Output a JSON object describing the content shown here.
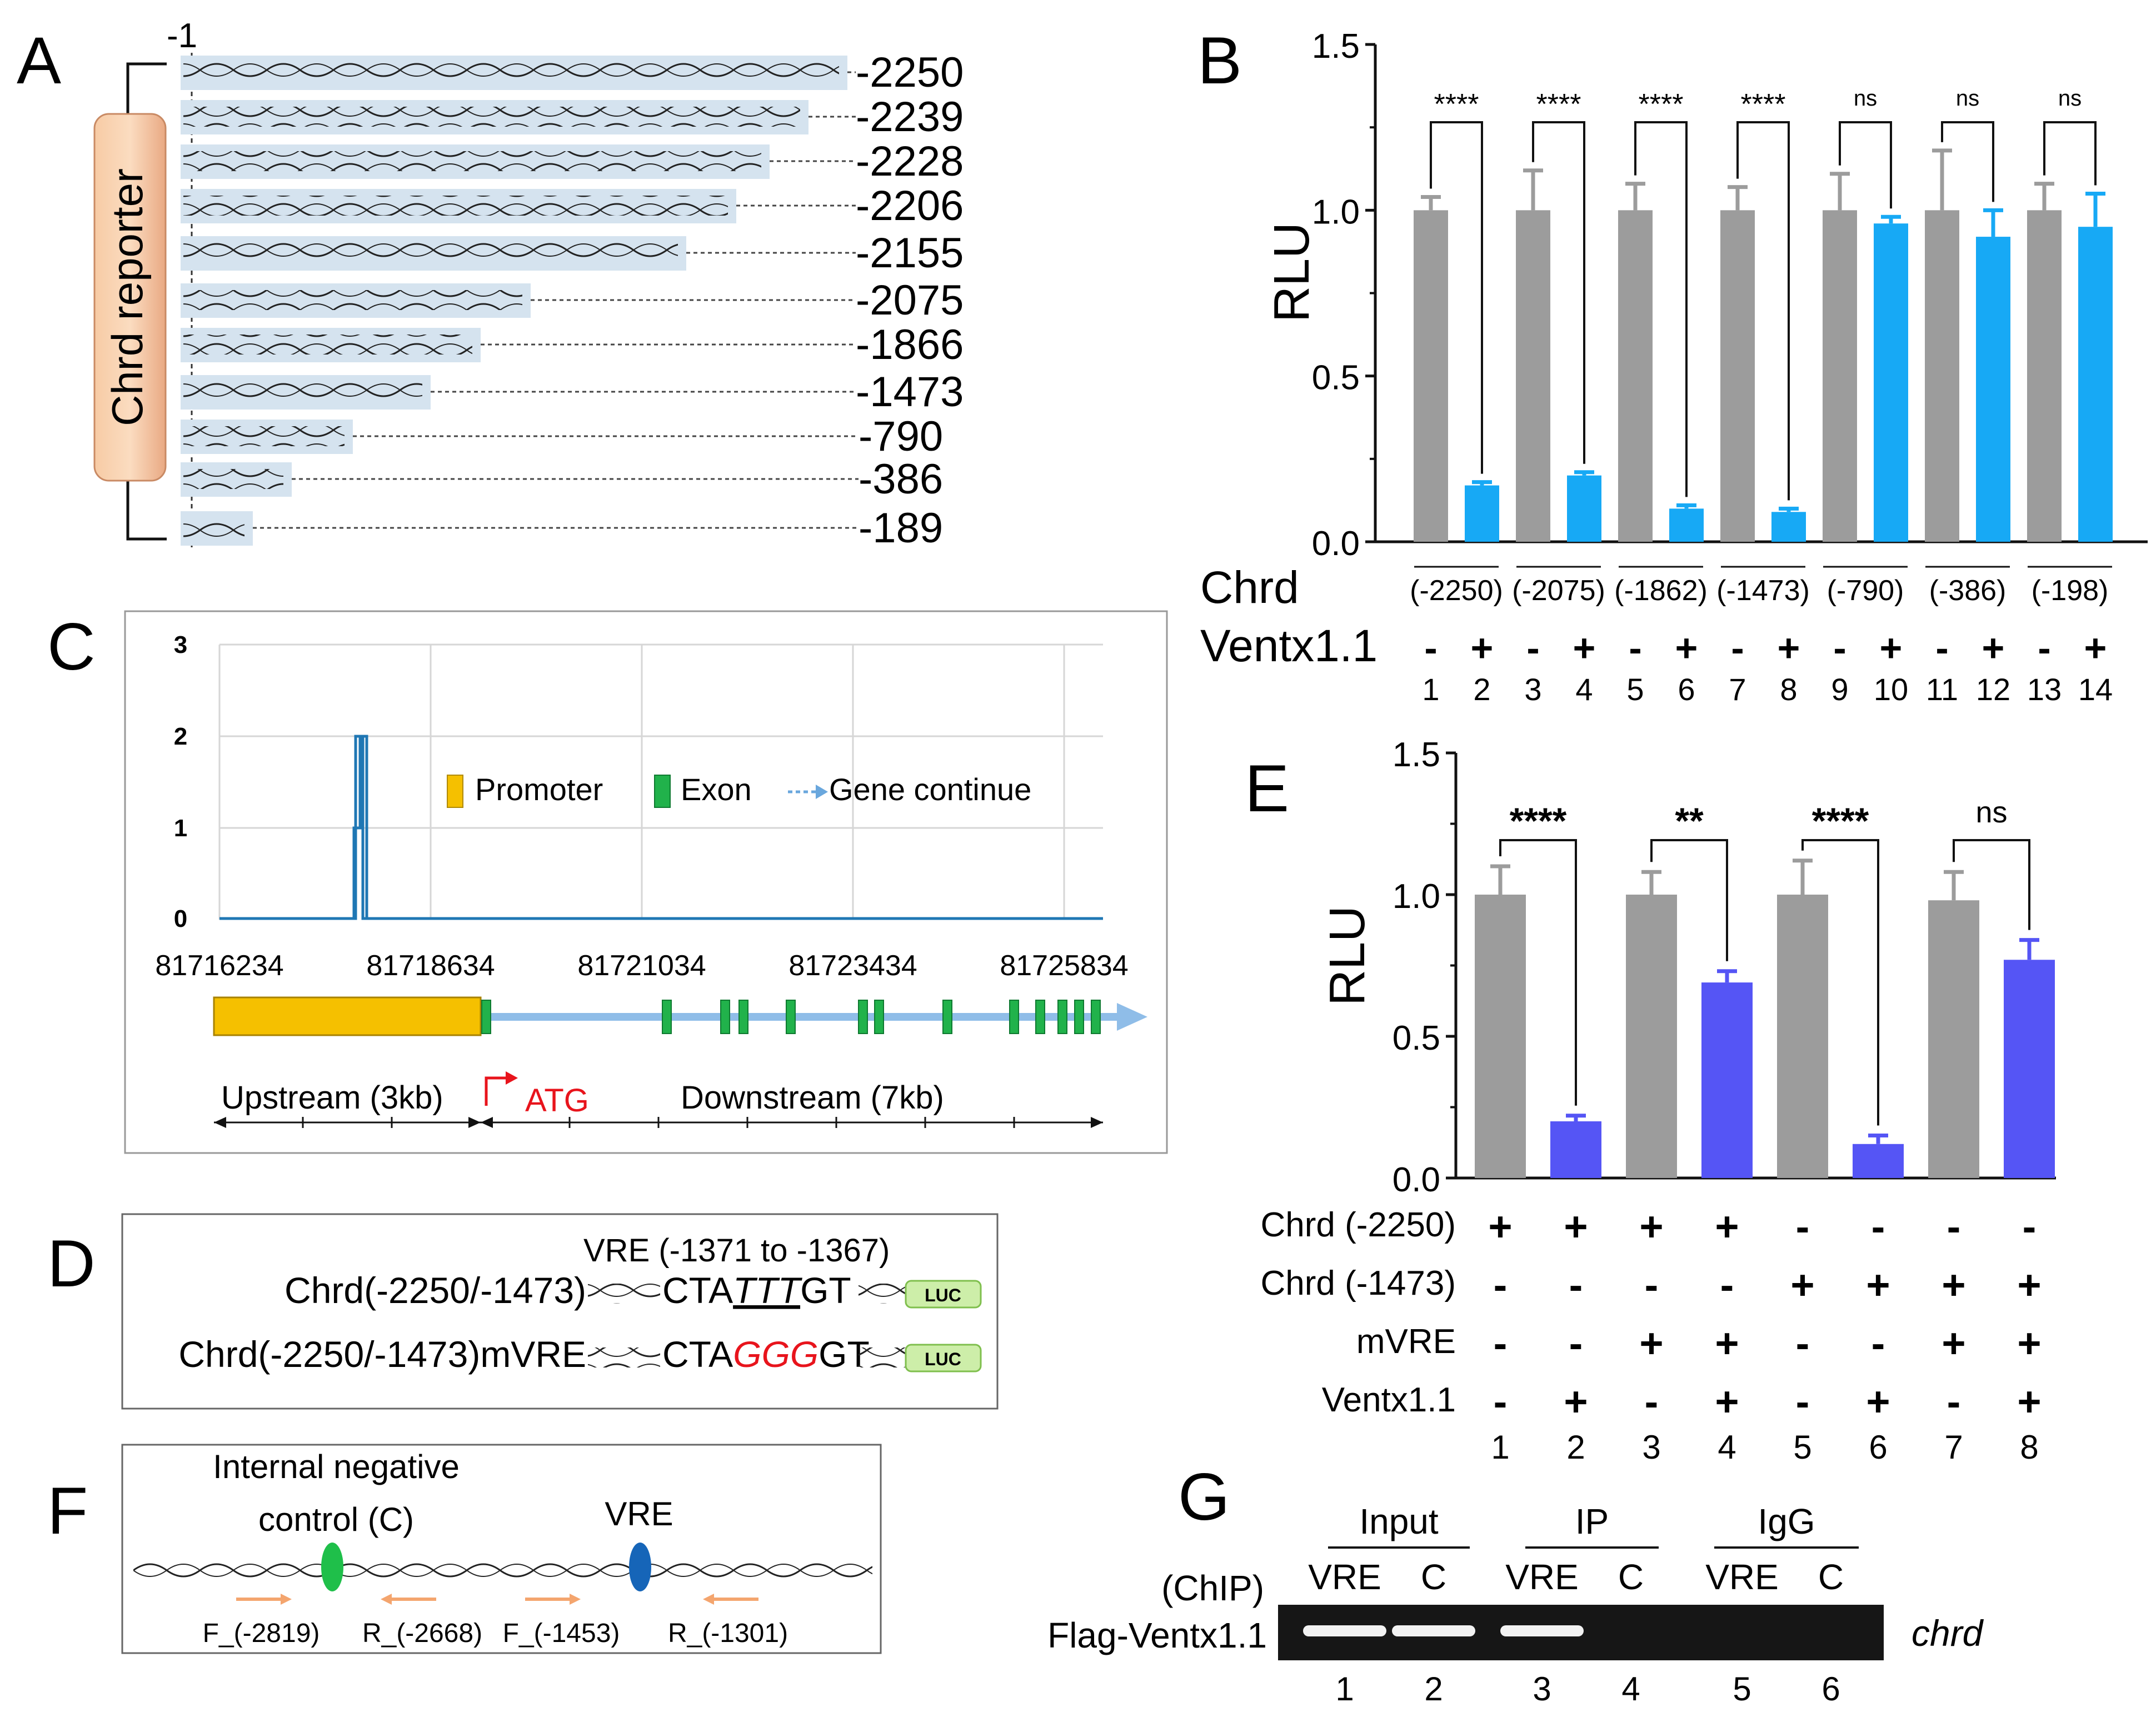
{
  "panels": {
    "A": {
      "letter": "A",
      "top_label": "-1",
      "reporter_label": "Chrd reporter",
      "constructs": [
        "-2250",
        "-2239",
        "-2228",
        "-2206",
        "-2155",
        "-2075",
        "-1866",
        "-1473",
        "-790",
        "-386",
        "-189"
      ]
    },
    "B": {
      "letter": "B",
      "row_chrd": "Chrd",
      "row_ventx": "Ventx1.1",
      "groups": [
        "(-2250)",
        "(-2075)",
        "(-1862)",
        "(-1473)",
        "(-790)",
        "(-386)",
        "(-198)"
      ],
      "signif": [
        "****",
        "****",
        "****",
        "****",
        "ns",
        "ns",
        "ns"
      ],
      "ventx_signs": [
        "-",
        "+",
        "-",
        "+",
        "-",
        "+",
        "-",
        "+",
        "-",
        "+",
        "-",
        "+",
        "-",
        "+"
      ],
      "lanes": [
        "1",
        "2",
        "3",
        "4",
        "5",
        "6",
        "7",
        "8",
        "9",
        "10",
        "11",
        "12",
        "13",
        "14"
      ]
    },
    "C": {
      "letter": "C",
      "y_ticks": [
        "3",
        "2",
        "1",
        "0"
      ],
      "x_ticks": [
        "81716234",
        "81718634",
        "81721034",
        "81723434",
        "81725834"
      ],
      "legend": {
        "promoter": "Promoter",
        "exon": "Exon",
        "gene_continue": "Gene continue"
      },
      "upstream": "Upstream (3kb)",
      "atg": "ATG",
      "downstream": "Downstream (7kb)",
      "colors": {
        "promoter": "#f5c000",
        "exon": "#21b24b",
        "line": "#1f77b4",
        "gene": "#8fbde8",
        "atg": "#e8141c"
      }
    },
    "D": {
      "letter": "D",
      "vre_title": "VRE (-1371 to -1367)",
      "wt_name": "Chrd(-2250/-1473)",
      "wt_seq_pre": "CTA",
      "wt_seq_mid": "TTT",
      "wt_seq_post": "GT",
      "mut_name": "Chrd(-2250/-1473)mVRE",
      "mut_seq_pre": "CTA",
      "mut_seq_mid": "GGG",
      "mut_seq_post": "GT",
      "luc": "LUC"
    },
    "E": {
      "letter": "E",
      "rows": [
        {
          "label": "Chrd (-2250)",
          "signs": [
            "+",
            "+",
            "+",
            "+",
            "-",
            "-",
            "-",
            "-"
          ]
        },
        {
          "label": "Chrd (-1473)",
          "signs": [
            "-",
            "-",
            "-",
            "-",
            "+",
            "+",
            "+",
            "+"
          ]
        },
        {
          "label": "mVRE",
          "signs": [
            "-",
            "-",
            "+",
            "+",
            "-",
            "-",
            "+",
            "+"
          ]
        },
        {
          "label": "Ventx1.1",
          "signs": [
            "-",
            "+",
            "-",
            "+",
            "-",
            "+",
            "-",
            "+"
          ]
        }
      ],
      "lanes": [
        "1",
        "2",
        "3",
        "4",
        "5",
        "6",
        "7",
        "8"
      ],
      "signif": [
        "****",
        "**",
        "****",
        "ns"
      ]
    },
    "F": {
      "letter": "F",
      "ctrl_line1": "Internal negative",
      "ctrl_line2": "control (C)",
      "vre": "VRE",
      "primers": [
        "F_(-2819)",
        "R_(-2668)",
        "F_(-1453)",
        "R_(-1301)"
      ]
    },
    "G": {
      "letter": "G",
      "groups": [
        "Input",
        "IP",
        "IgG"
      ],
      "lane_labels": [
        "VRE",
        "C",
        "VRE",
        "C",
        "VRE",
        "C"
      ],
      "left_label1": "(ChIP)",
      "left_label2": "Flag-Ventx1.1",
      "gene": "chrd",
      "lanes": [
        "1",
        "2",
        "3",
        "4",
        "5",
        "6"
      ]
    }
  },
  "chart_data": [
    {
      "type": "bar",
      "panel": "B",
      "ylabel": "RLU",
      "ylim": [
        0,
        1.5
      ],
      "y_ticks": [
        "0.0",
        "0.5",
        "1.0",
        "1.5"
      ],
      "categories": [
        "1",
        "2",
        "3",
        "4",
        "5",
        "6",
        "7",
        "8",
        "9",
        "10",
        "11",
        "12",
        "13",
        "14"
      ],
      "values": [
        1.0,
        0.17,
        1.0,
        0.2,
        1.0,
        0.1,
        1.0,
        0.09,
        1.0,
        0.96,
        1.0,
        0.92,
        1.0,
        0.95
      ],
      "errors": [
        0.04,
        0.01,
        0.12,
        0.01,
        0.08,
        0.01,
        0.07,
        0.01,
        0.11,
        0.02,
        0.18,
        0.08,
        0.08,
        0.1
      ],
      "colors": {
        "control": "#9c9c9c",
        "ventx": "#17a9f5"
      }
    },
    {
      "type": "bar",
      "panel": "E",
      "ylabel": "RLU",
      "ylim": [
        0,
        1.5
      ],
      "y_ticks": [
        "0.0",
        "0.5",
        "1.0",
        "1.5"
      ],
      "categories": [
        "1",
        "2",
        "3",
        "4",
        "5",
        "6",
        "7",
        "8"
      ],
      "values": [
        1.0,
        0.2,
        1.0,
        0.69,
        1.0,
        0.12,
        0.98,
        0.77
      ],
      "errors": [
        0.1,
        0.02,
        0.08,
        0.04,
        0.12,
        0.03,
        0.1,
        0.07
      ],
      "colors": {
        "control": "#9c9c9c",
        "ventx": "#5555f5"
      }
    }
  ]
}
